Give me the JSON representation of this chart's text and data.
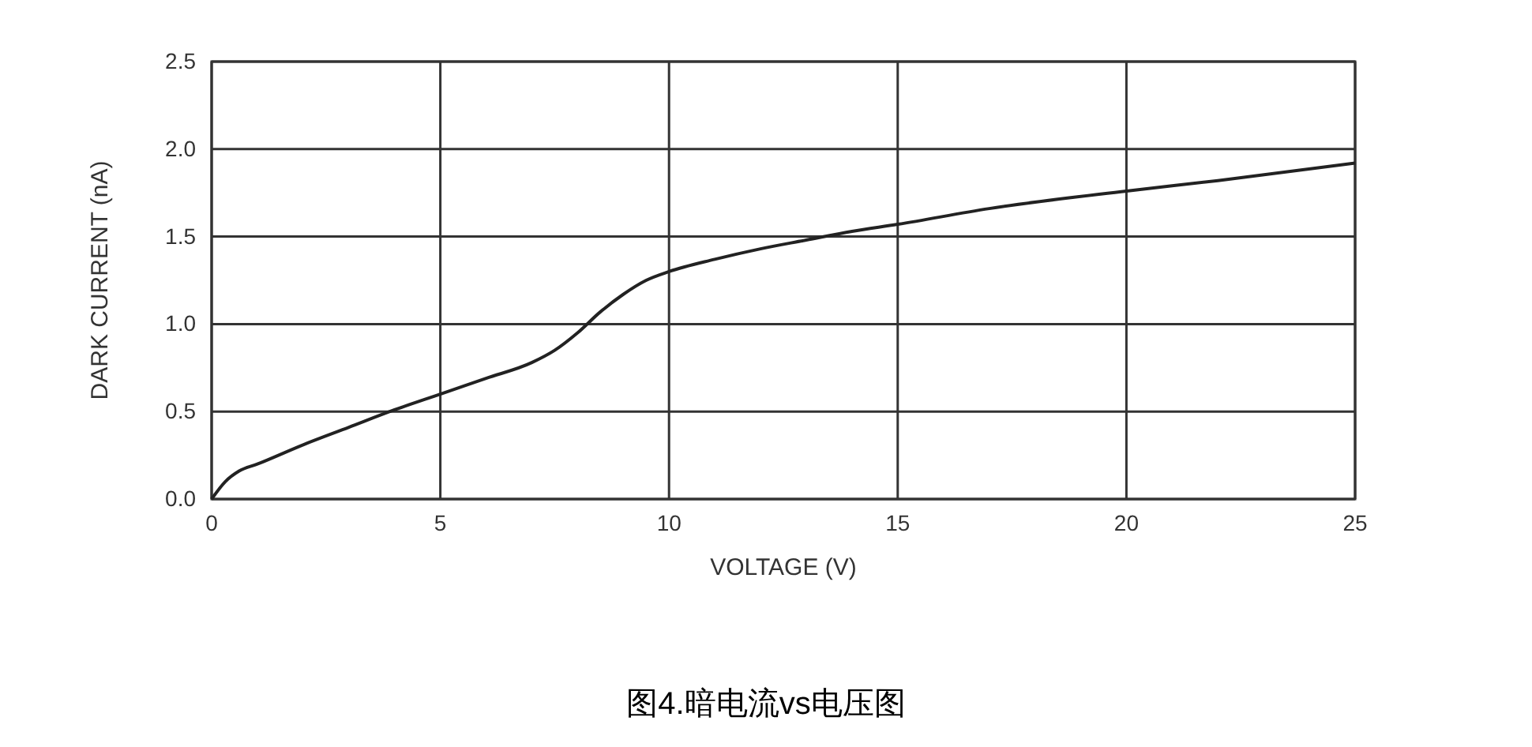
{
  "chart_data": {
    "type": "line",
    "xlabel": "VOLTAGE (V)",
    "ylabel": "DARK CURRENT (nA)",
    "annotations": [
      "图4.暗电流vs电压图"
    ],
    "x": [
      0,
      0.3,
      0.6,
      1,
      2,
      3,
      4,
      5,
      6,
      7,
      7.5,
      8,
      8.5,
      9,
      9.5,
      10,
      11,
      12,
      13,
      14,
      15,
      17,
      20,
      22,
      25
    ],
    "series": [
      {
        "color": "#222222",
        "values": [
          0,
          0.1,
          0.16,
          0.2,
          0.31,
          0.41,
          0.51,
          0.6,
          0.69,
          0.78,
          0.85,
          0.95,
          1.07,
          1.17,
          1.25,
          1.3,
          1.37,
          1.43,
          1.48,
          1.53,
          1.57,
          1.66,
          1.76,
          1.82,
          1.92
        ]
      }
    ],
    "xlim": [
      0,
      25
    ],
    "xticks": [
      0,
      5,
      10,
      15,
      20,
      25
    ],
    "ylim": [
      0,
      2.5
    ],
    "yticks": [
      {
        "value": 0,
        "label": "0.0"
      },
      {
        "value": 0.5,
        "label": "0.5"
      },
      {
        "value": 1,
        "label": "1.0"
      },
      {
        "value": 1.5,
        "label": "1.5"
      },
      {
        "value": 2,
        "label": "2.0"
      },
      {
        "value": 2.5,
        "label": "2.5"
      }
    ],
    "grid": true
  }
}
